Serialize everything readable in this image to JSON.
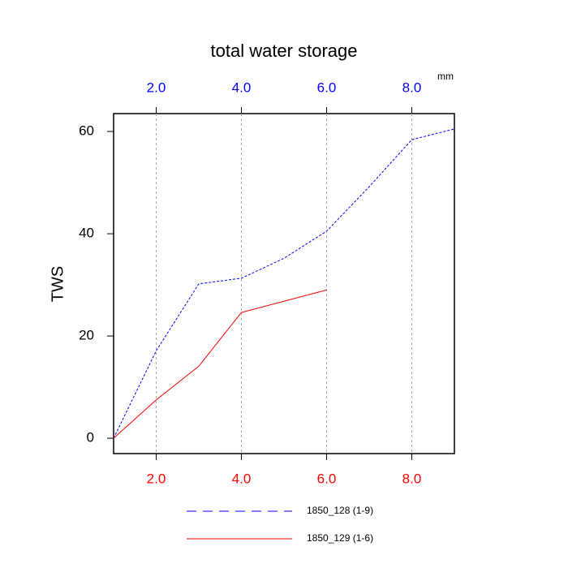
{
  "chart_data": {
    "type": "line",
    "title": "total water storage",
    "ylabel": "TWS",
    "x_units": "mm",
    "xlim": [
      1,
      9
    ],
    "ylim": [
      -3,
      63.5
    ],
    "xticks": [
      {
        "value": 2,
        "label": "2.0"
      },
      {
        "value": 4,
        "label": "4.0"
      },
      {
        "value": 6,
        "label": "6.0"
      },
      {
        "value": 8,
        "label": "8.0"
      }
    ],
    "yticks": [
      0,
      20,
      40,
      60
    ],
    "grid": true,
    "top_tick_color": "#0000ff",
    "bottom_tick_color": "#ff0000",
    "series": [
      {
        "name": "1850_128 (1-9)",
        "color": "#0000ff",
        "dashed": true,
        "x": [
          1,
          2,
          3,
          4,
          5,
          6,
          7,
          8,
          9
        ],
        "values": [
          0,
          17.1,
          30.2,
          31.3,
          35.2,
          40.5,
          49.2,
          58.4,
          60.5
        ]
      },
      {
        "name": "1850_129 (1-6)",
        "color": "#ff0000",
        "dashed": false,
        "x": [
          1,
          2,
          3,
          4,
          5,
          6
        ],
        "values": [
          0,
          7.5,
          14.1,
          24.6,
          26.8,
          29.0
        ]
      }
    ]
  }
}
